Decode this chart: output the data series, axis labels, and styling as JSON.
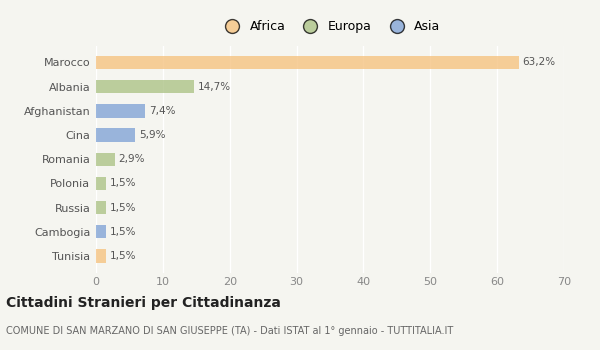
{
  "categories": [
    "Tunisia",
    "Cambogia",
    "Russia",
    "Polonia",
    "Romania",
    "Cina",
    "Afghanistan",
    "Albania",
    "Marocco"
  ],
  "values": [
    1.5,
    1.5,
    1.5,
    1.5,
    2.9,
    5.9,
    7.4,
    14.7,
    63.2
  ],
  "labels": [
    "1,5%",
    "1,5%",
    "1,5%",
    "1,5%",
    "2,9%",
    "5,9%",
    "7,4%",
    "14,7%",
    "63,2%"
  ],
  "colors": [
    "#f5c07a",
    "#7b9fd4",
    "#a8c080",
    "#a8c080",
    "#a8c080",
    "#7b9fd4",
    "#7b9fd4",
    "#a8c080",
    "#f5c07a"
  ],
  "legend": [
    {
      "label": "Africa",
      "color": "#f5c07a"
    },
    {
      "label": "Europa",
      "color": "#a8c080"
    },
    {
      "label": "Asia",
      "color": "#7b9fd4"
    }
  ],
  "xlim": [
    0,
    70
  ],
  "xticks": [
    0,
    10,
    20,
    30,
    40,
    50,
    60,
    70
  ],
  "title": "Cittadini Stranieri per Cittadinanza",
  "subtitle": "COMUNE DI SAN MARZANO DI SAN GIUSEPPE (TA) - Dati ISTAT al 1° gennaio - TUTTITALIA.IT",
  "bg_color": "#f5f5f0",
  "bar_alpha": 0.75,
  "bar_height": 0.55
}
